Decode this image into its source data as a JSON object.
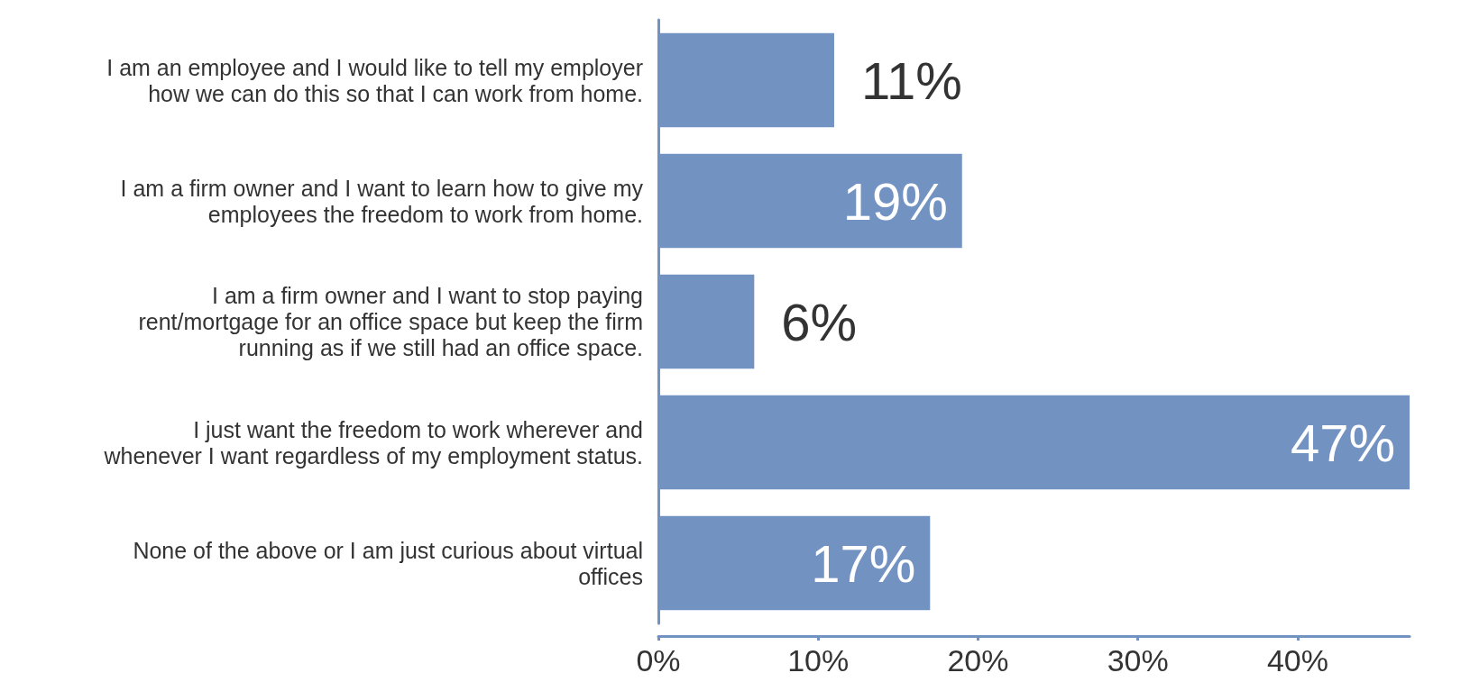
{
  "chart_data": {
    "type": "bar",
    "orientation": "horizontal",
    "categories": [
      "I am an employee and I would like to tell my employer\nhow we can do this so that I can work from home.",
      "I am a firm owner and I want to learn how to give my\nemployees the freedom to work from home.",
      "I am a firm owner and I want to stop paying\nrent/mortgage for an office space but keep the firm\nrunning as if we still had an office space.",
      "I just want the freedom to work wherever and\nwhenever I want regardless of my employment status.",
      "None of the above or I am just curious about virtual\noffices"
    ],
    "values": [
      11,
      19,
      6,
      47,
      17
    ],
    "color": "#7292c2",
    "value_labels": [
      "11%",
      "19%",
      "6%",
      "47%",
      "17%"
    ],
    "xlim": [
      0,
      47
    ],
    "xticks": [
      {
        "value": 0,
        "label": "0%"
      },
      {
        "value": 10,
        "label": "10%"
      },
      {
        "value": 20,
        "label": "20%"
      },
      {
        "value": 30,
        "label": "30%"
      },
      {
        "value": 40,
        "label": "40%"
      }
    ]
  }
}
